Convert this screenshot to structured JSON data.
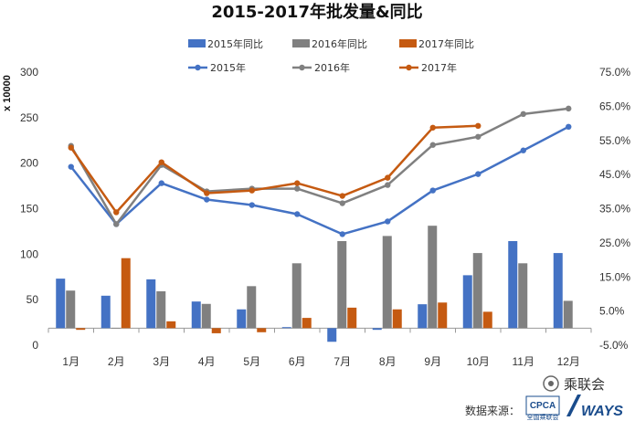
{
  "chart_data": {
    "type": "bar",
    "title": "2015-2017年批发量&同比",
    "y_unit_label": "x 10000",
    "categories": [
      "1月",
      "2月",
      "3月",
      "4月",
      "5月",
      "6月",
      "7月",
      "8月",
      "9月",
      "10月",
      "11月",
      "12月"
    ],
    "ylim": [
      0,
      300
    ],
    "yticks": [
      0,
      50,
      100,
      150,
      200,
      250,
      300
    ],
    "y2lim": [
      -5,
      75
    ],
    "y2ticks": [
      "-5.0%",
      "5.0%",
      "15.0%",
      "25.0%",
      "35.0%",
      "45.0%",
      "55.0%",
      "65.0%",
      "75.0%"
    ],
    "bar_series": [
      {
        "name": "2015年同比",
        "color": "#4472C4",
        "axis": "right",
        "values": [
          14.5,
          9.5,
          14.3,
          7.8,
          5.5,
          0.3,
          -4.0,
          -0.5,
          7.0,
          15.5,
          25.5,
          22.0
        ]
      },
      {
        "name": "2016年同比",
        "color": "#808080",
        "axis": "right",
        "values": [
          11.0,
          0.1,
          10.8,
          7.1,
          12.3,
          19.0,
          25.5,
          27.0,
          30.0,
          22.0,
          19.0,
          8.0
        ]
      },
      {
        "name": "2017年同比",
        "color": "#C55A11",
        "axis": "right",
        "values": [
          -0.5,
          20.5,
          2.0,
          -1.5,
          -1.2,
          3.0,
          6.0,
          5.5,
          7.5,
          4.8,
          null,
          null
        ]
      }
    ],
    "line_series": [
      {
        "name": "2015年",
        "color": "#4472C4",
        "axis": "left",
        "values": [
          196,
          133,
          178,
          160,
          154,
          144,
          122,
          136,
          170,
          188,
          214,
          240
        ]
      },
      {
        "name": "2016年",
        "color": "#808080",
        "axis": "left",
        "values": [
          219,
          133,
          198,
          169,
          172,
          172,
          156,
          176,
          220,
          229,
          254,
          260
        ]
      },
      {
        "name": "2017年",
        "color": "#C55A11",
        "axis": "left",
        "values": [
          217,
          146,
          201,
          167,
          170,
          178,
          164,
          184,
          239,
          241,
          null,
          null
        ]
      }
    ],
    "legend_position": "top-center",
    "grid": false
  },
  "footer": {
    "source_label": "数据来源：",
    "logo_cpca": "CPCA",
    "logo_cpca_sub": "全国乘联会",
    "logo_ways": "WAYS",
    "brand": "乘联会"
  }
}
